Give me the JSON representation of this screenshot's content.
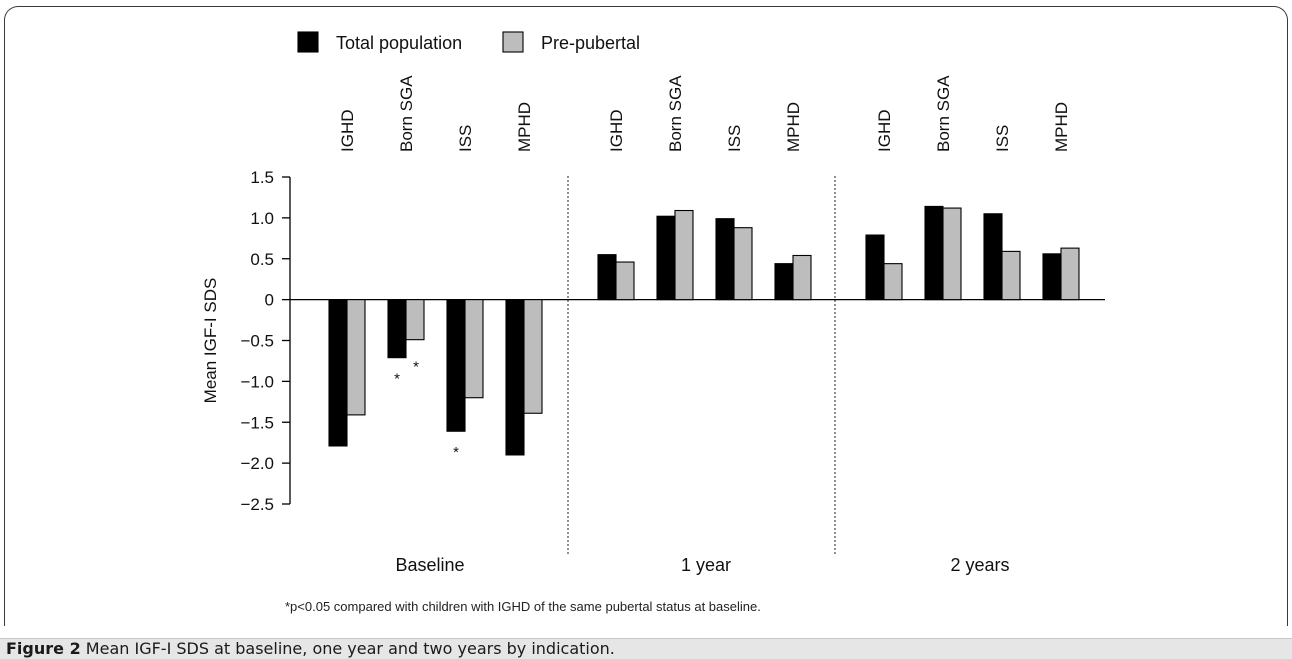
{
  "chart_data": {
    "type": "bar",
    "ylabel": "Mean IGF-I SDS",
    "ylim": [
      -2.5,
      1.5
    ],
    "yticks": [
      "1.5",
      "1.0",
      "0.5",
      "0",
      "−0.5",
      "−1.0",
      "−1.5",
      "−2.0",
      "−2.5"
    ],
    "ytick_values": [
      1.5,
      1.0,
      0.5,
      0,
      -0.5,
      -1.0,
      -1.5,
      -2.0,
      -2.5
    ],
    "categories": [
      "IGHD",
      "Born SGA",
      "ISS",
      "MPHD"
    ],
    "groups": [
      "Baseline",
      "1 year",
      "2 years"
    ],
    "legend_position": "top",
    "series": [
      {
        "name": "Total population",
        "color": "#000000",
        "values": [
          [
            -1.79,
            -0.71,
            -1.61,
            -1.9
          ],
          [
            0.55,
            1.02,
            0.99,
            0.44
          ],
          [
            0.79,
            1.14,
            1.05,
            0.56
          ]
        ]
      },
      {
        "name": "Pre-pubertal",
        "color": "#bdbdbd",
        "values": [
          [
            -1.41,
            -0.49,
            -1.2,
            -1.39
          ],
          [
            0.46,
            1.09,
            0.88,
            0.54
          ],
          [
            0.44,
            1.12,
            0.59,
            0.63
          ]
        ]
      }
    ],
    "annotations": [
      {
        "text": "*",
        "group": 0,
        "category": 1,
        "series": 0
      },
      {
        "text": "*",
        "group": 0,
        "category": 1,
        "series": 1
      },
      {
        "text": "*",
        "group": 0,
        "category": 2,
        "series": 0
      }
    ],
    "footnote": "*p<0.05 compared with children with IGHD of the same pubertal status at baseline."
  },
  "caption": {
    "label": "Figure 2",
    "text": " Mean IGF-I SDS at baseline, one year and two years by indication."
  }
}
